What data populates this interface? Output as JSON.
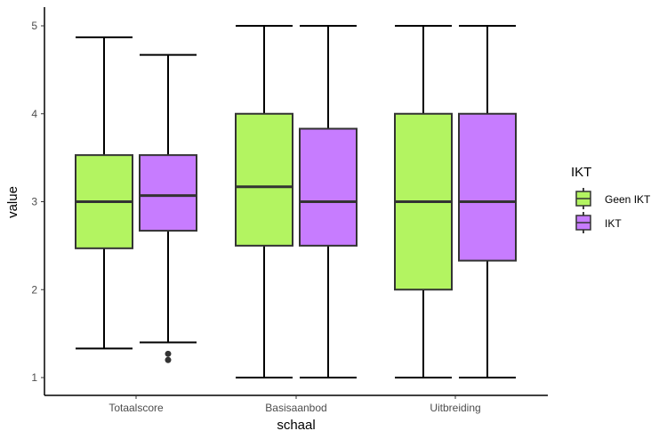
{
  "chart_data": {
    "type": "boxplot",
    "categories": [
      "Totaalscore",
      "Basisaanbod",
      "Uitbreiding"
    ],
    "xlabel": "schaal",
    "ylabel": "value",
    "ylim": [
      0.95,
      5.05
    ],
    "yticks": [
      1,
      2,
      3,
      4,
      5
    ],
    "grid": false,
    "legend": {
      "title": "IKT",
      "placement": "right"
    },
    "series": [
      {
        "name": "Geen IKT",
        "color": "#b3f461",
        "boxes": [
          {
            "category": "Totaalscore",
            "whisker_low": 1.33,
            "q1": 2.47,
            "median": 3.0,
            "q3": 3.53,
            "whisker_high": 4.87,
            "outliers": []
          },
          {
            "category": "Basisaanbod",
            "whisker_low": 1.0,
            "q1": 2.5,
            "median": 3.17,
            "q3": 4.0,
            "whisker_high": 5.0,
            "outliers": []
          },
          {
            "category": "Uitbreiding",
            "whisker_low": 1.0,
            "q1": 2.0,
            "median": 3.0,
            "q3": 4.0,
            "whisker_high": 5.0,
            "outliers": []
          }
        ]
      },
      {
        "name": "IKT",
        "color": "#c77cff",
        "boxes": [
          {
            "category": "Totaalscore",
            "whisker_low": 1.4,
            "q1": 2.67,
            "median": 3.07,
            "q3": 3.53,
            "whisker_high": 4.67,
            "outliers": [
              1.27,
              1.2
            ]
          },
          {
            "category": "Basisaanbod",
            "whisker_low": 1.0,
            "q1": 2.5,
            "median": 3.0,
            "q3": 3.83,
            "whisker_high": 5.0,
            "outliers": []
          },
          {
            "category": "Uitbreiding",
            "whisker_low": 1.0,
            "q1": 2.33,
            "median": 3.0,
            "q3": 4.0,
            "whisker_high": 5.0,
            "outliers": []
          }
        ]
      }
    ]
  }
}
